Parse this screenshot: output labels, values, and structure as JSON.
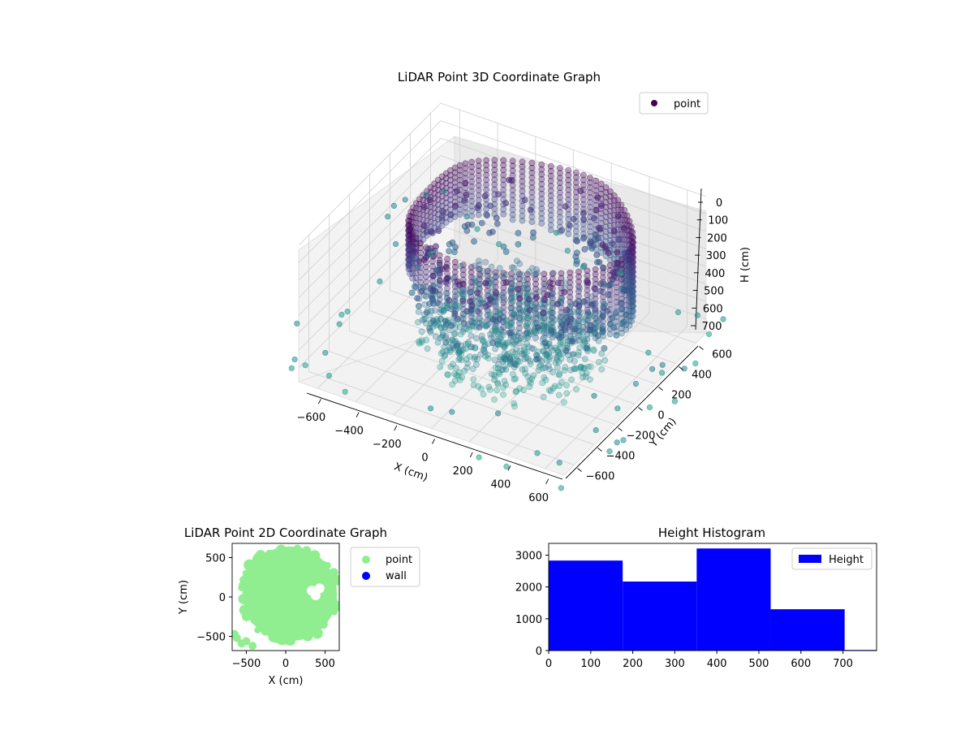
{
  "chart_data": [
    {
      "type": "scatter3d",
      "title": "LiDAR Point 3D Coordinate Graph",
      "xlabel": "X (cm)",
      "ylabel": "Y (cm)",
      "zlabel": "H (cm)",
      "xlim": [
        -700,
        700
      ],
      "ylim": [
        -700,
        700
      ],
      "zlim": [
        780,
        0
      ],
      "z_inverted": true,
      "xticks": [
        "−600",
        "−400",
        "−200",
        "0",
        "200",
        "400",
        "600"
      ],
      "yticks": [
        "−600",
        "−400",
        "−200",
        "0",
        "200",
        "400",
        "600"
      ],
      "zticks": [
        "0",
        "100",
        "200",
        "300",
        "400",
        "500",
        "600",
        "700"
      ],
      "grid": true,
      "colormap": "viridis",
      "legend": {
        "placement": "top-right",
        "entries": [
          {
            "label": "point",
            "color": "#440154"
          }
        ]
      },
      "series": [
        {
          "name": "point",
          "shape": "ring-wall",
          "radius_x": 560,
          "radius_y": 520,
          "h_range": [
            0,
            350
          ]
        },
        {
          "name": "point",
          "shape": "floor-cluster",
          "center": [
            80,
            -60
          ],
          "h_range": [
            400,
            720
          ]
        },
        {
          "name": "point",
          "shape": "scattered-outliers",
          "h_range": [
            550,
            780
          ]
        }
      ]
    },
    {
      "type": "scatter",
      "title": "LiDAR Point 2D Coordinate Graph",
      "xlabel": "X (cm)",
      "ylabel": "Y (cm)",
      "xlim": [
        -680,
        680
      ],
      "ylim": [
        -680,
        680
      ],
      "xticks": [
        "−500",
        "0",
        "500"
      ],
      "yticks": [
        "−500",
        "0",
        "500"
      ],
      "legend": {
        "placement": "outside-right",
        "entries": [
          {
            "label": "point",
            "color": "#90ee90"
          },
          {
            "label": "wall",
            "color": "#0000ff"
          }
        ]
      },
      "blob": {
        "center": [
          50,
          40
        ],
        "radius": 600
      }
    },
    {
      "type": "histogram",
      "title": "Height Histogram",
      "bins": [
        [
          0,
          176
        ],
        [
          176,
          352
        ],
        [
          352,
          528
        ],
        [
          528,
          704
        ],
        [
          704,
          880
        ]
      ],
      "values": [
        2830,
        2170,
        3210,
        1300,
        20
      ],
      "xlim": [
        0,
        780
      ],
      "ylim": [
        0,
        3370
      ],
      "xticks": [
        "0",
        "100",
        "200",
        "300",
        "400",
        "500",
        "600",
        "700"
      ],
      "yticks": [
        "0",
        "1000",
        "2000",
        "3000"
      ],
      "color": "#0000ff",
      "legend": {
        "placement": "upper-right",
        "entries": [
          {
            "label": "Height",
            "color": "#0000ff"
          }
        ]
      }
    }
  ]
}
